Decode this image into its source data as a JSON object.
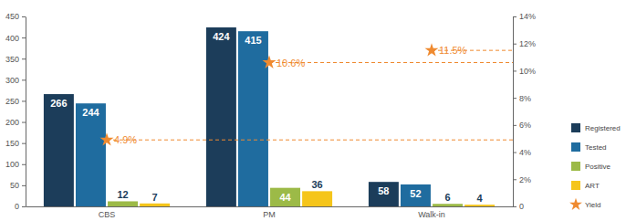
{
  "chart_data": {
    "type": "bar",
    "categories": [
      "CBS",
      "PM",
      "Walk-in"
    ],
    "series": [
      {
        "name": "Registered",
        "color": "#1c3d5a",
        "values": [
          266,
          424,
          58
        ]
      },
      {
        "name": "Tested",
        "color": "#1f6c9f",
        "values": [
          244,
          415,
          52
        ]
      },
      {
        "name": "Positive",
        "color": "#9cba47",
        "values": [
          12,
          44,
          6
        ]
      },
      {
        "name": "ART",
        "color": "#f5c51b",
        "values": [
          7,
          36,
          4
        ]
      },
      {
        "name": "Yield",
        "color": "#ef8a30",
        "type": "scatter",
        "marker": "star",
        "line_style": "dashed",
        "axis": "y2",
        "values": [
          4.9,
          10.6,
          11.5
        ],
        "value_labels": [
          "4.9%",
          "10.6%",
          "11.5%"
        ]
      }
    ],
    "ylim": [
      0,
      450
    ],
    "yticks": [
      0,
      50,
      100,
      150,
      200,
      250,
      300,
      350,
      400,
      450
    ],
    "y2lim": [
      0,
      14
    ],
    "y2ticks": [
      0,
      {
        "value": 2,
        "label": "2%"
      },
      {
        "value": 4,
        "label": "4%"
      },
      {
        "value": 6,
        "label": "6%"
      },
      {
        "value": 8,
        "label": "8%"
      },
      {
        "value": 10,
        "label": "10%"
      },
      {
        "value": 12,
        "label": "12%"
      },
      {
        "value": 14,
        "label": "14%"
      }
    ],
    "grid": false,
    "data_labels": true,
    "legend": "right"
  }
}
